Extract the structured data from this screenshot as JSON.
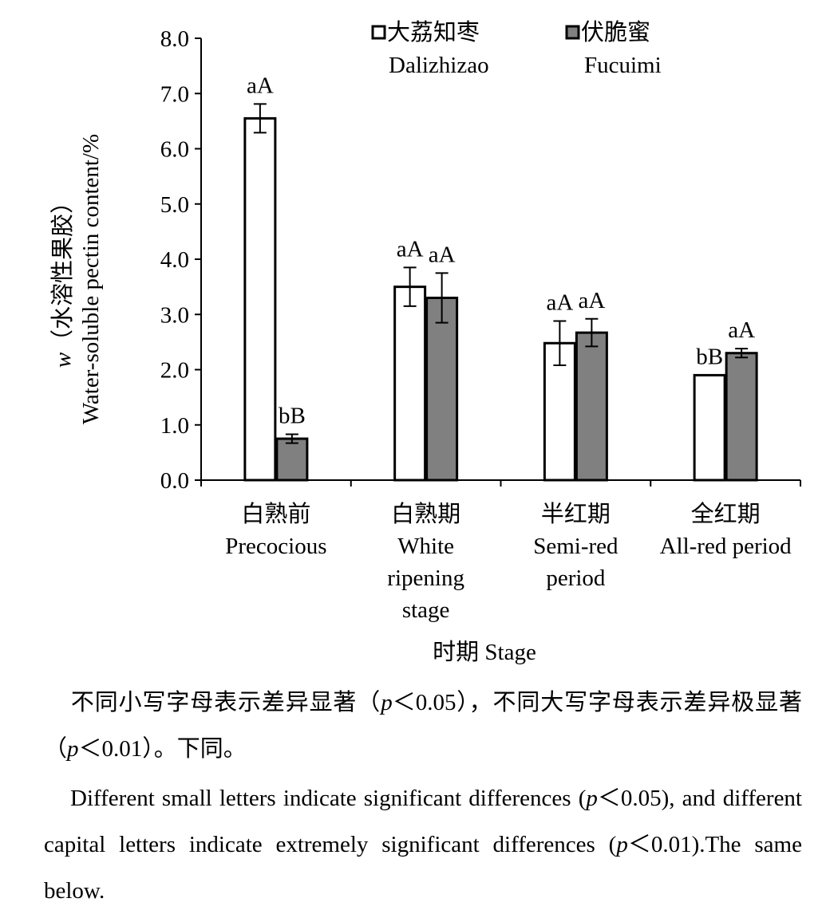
{
  "chart_data": {
    "type": "bar",
    "categories": [
      [
        "白熟前",
        "Precocious"
      ],
      [
        "白熟期",
        "White",
        "ripening",
        "stage"
      ],
      [
        "半红期",
        "Semi-red",
        "period"
      ],
      [
        "全红期",
        "All-red period"
      ]
    ],
    "series": [
      {
        "name": "大荔知枣",
        "name_en": "Dalizhizao",
        "fill": "#ffffff",
        "values": [
          6.55,
          3.5,
          2.48,
          1.9
        ],
        "errors": [
          0.26,
          0.35,
          0.4,
          0.0
        ],
        "labels": [
          "aA",
          "aA",
          "aA",
          "bB"
        ]
      },
      {
        "name": "伏脆蜜",
        "name_en": "Fucuimi",
        "fill": "#808080",
        "values": [
          0.75,
          3.3,
          2.67,
          2.3
        ],
        "errors": [
          0.08,
          0.45,
          0.25,
          0.08
        ],
        "labels": [
          "bB",
          "aA",
          "aA",
          "aA"
        ]
      }
    ],
    "ylim": [
      0,
      8
    ],
    "yticks": [
      "0.0",
      "1.0",
      "2.0",
      "3.0",
      "4.0",
      "5.0",
      "6.0",
      "7.0",
      "8.0"
    ],
    "ylabel_line1_italic": "w",
    "ylabel_line1_rest": "（水溶性果胶）",
    "ylabel_line2": "Water-soluble pectin content/%",
    "xlabel": "时期 Stage",
    "legend_position": "top-right",
    "grid": false
  },
  "notes": {
    "cn_a": "不同小写字母表示差异显著（",
    "cn_b": "＜0.05），不同大写字母表示差异极显著（",
    "cn_c": "＜0.01）。下同。",
    "en_a": "Different small letters indicate significant differences (",
    "en_b": "＜0.05), and different capital letters indicate extremely significant differences (",
    "en_c": "＜0.01).The same below.",
    "p": "p"
  }
}
